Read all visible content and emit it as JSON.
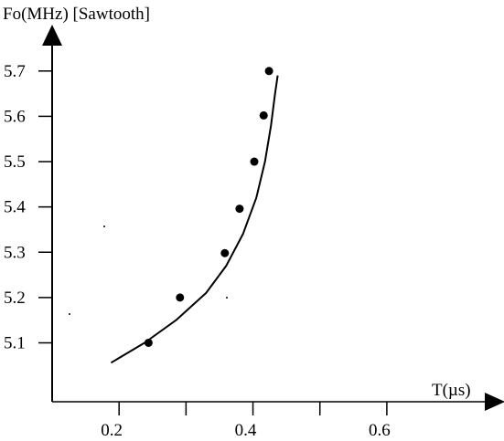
{
  "chart_data": {
    "type": "scatter",
    "title": "",
    "ylabel": "Fo(MHz) [Sawtooth]",
    "xlabel": "T(µs)",
    "xlim": [
      0.1,
      0.76
    ],
    "ylim": [
      4.97,
      5.76
    ],
    "grid": false,
    "legend": "none",
    "x_ticks": [
      0.2,
      0.3,
      0.4,
      0.5,
      0.6
    ],
    "x_tick_labels": [
      "0.2",
      "0.4",
      "0.6"
    ],
    "x_tick_label_values": [
      0.2,
      0.4,
      0.6
    ],
    "y_ticks": [
      5.1,
      5.2,
      5.3,
      5.4,
      5.5,
      5.6,
      5.7
    ],
    "y_tick_labels": [
      "5.1",
      "5.2",
      "5.3",
      "5.4",
      "5.5",
      "5.6",
      "5.7"
    ],
    "series": [
      {
        "mode": "markers",
        "x": [
          0.244,
          0.291,
          0.358,
          0.38,
          0.402,
          0.416,
          0.424
        ],
        "y": [
          5.1,
          5.2,
          5.298,
          5.396,
          5.5,
          5.602,
          5.7
        ],
        "color": "#000000"
      },
      {
        "mode": "line",
        "x": [
          0.188,
          0.238,
          0.285,
          0.33,
          0.36,
          0.385,
          0.405,
          0.418,
          0.427,
          0.433,
          0.437
        ],
        "y": [
          5.056,
          5.1,
          5.15,
          5.21,
          5.27,
          5.34,
          5.42,
          5.5,
          5.58,
          5.65,
          5.69
        ],
        "color": "#000000"
      }
    ]
  }
}
